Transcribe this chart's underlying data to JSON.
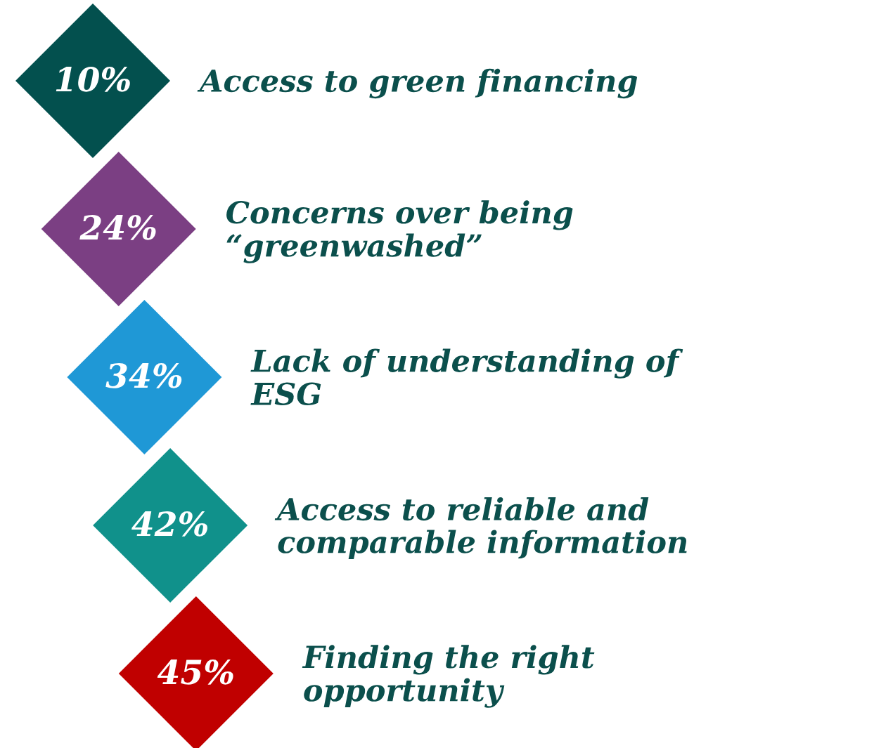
{
  "chart_data": {
    "type": "other",
    "categories": [
      "Access to green financing",
      "Concerns over being\n“greenwashed”",
      "Lack of understanding of\nESG",
      "Access to reliable and\ncomparable information",
      "Finding the right\nopportunity"
    ],
    "values": [
      10,
      24,
      34,
      42,
      45
    ],
    "value_labels": [
      "10%",
      "24%",
      "34%",
      "42%",
      "45%"
    ],
    "colors": [
      "#03504e",
      "#7b3f83",
      "#1f98d6",
      "#10918b",
      "#c00000"
    ],
    "color": "#0b4f4c"
  }
}
